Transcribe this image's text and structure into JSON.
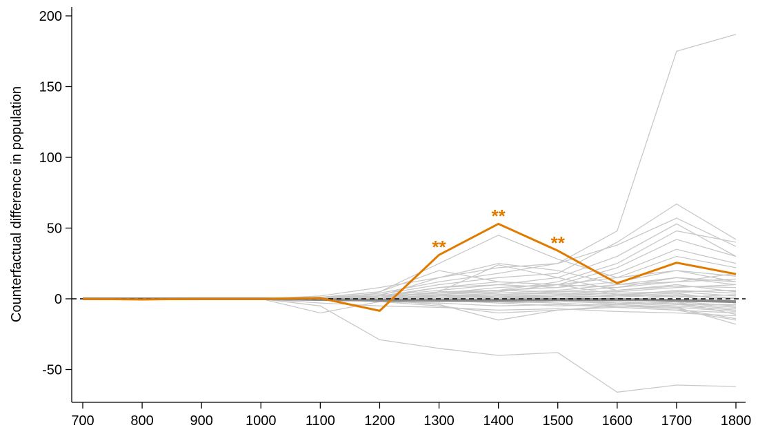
{
  "chart_data": {
    "type": "line",
    "title": "",
    "xlabel": "",
    "ylabel": "Counterfactual difference in population",
    "x": [
      700,
      800,
      900,
      1000,
      1100,
      1200,
      1300,
      1400,
      1500,
      1600,
      1700,
      1800
    ],
    "xlim": [
      690,
      1810
    ],
    "ylim": [
      -73,
      203
    ],
    "xticks": [
      700,
      800,
      900,
      1000,
      1100,
      1200,
      1300,
      1400,
      1500,
      1600,
      1700,
      1800
    ],
    "yticks": [
      -50,
      0,
      50,
      100,
      150,
      200
    ],
    "xtick_labels": [
      "700",
      "800",
      "900",
      "1000",
      "1100",
      "1200",
      "1300",
      "1400",
      "1500",
      "1600",
      "1700",
      "1800"
    ],
    "ytick_labels": [
      "-50",
      "0",
      "50",
      "100",
      "150",
      "200"
    ],
    "grid": false,
    "reference_line": {
      "y": 0,
      "style": "dashed",
      "color": "#000000"
    },
    "main_series": {
      "values": [
        0,
        -0.5,
        0,
        0,
        0.5,
        -8.5,
        31,
        53,
        34,
        11,
        25.5,
        17.5
      ],
      "color": "#E07B00"
    },
    "annotations": [
      {
        "text": "**",
        "x": 1300,
        "y": 39
      },
      {
        "text": "**",
        "x": 1400,
        "y": 61
      },
      {
        "text": "**",
        "x": 1500,
        "y": 42
      }
    ],
    "placebo_color": "#c8c8c8",
    "placebo_series": [
      [
        0,
        0,
        0,
        0,
        1,
        5,
        25,
        45,
        28,
        15,
        20,
        12
      ],
      [
        0,
        0,
        0,
        0,
        2,
        8,
        15,
        22,
        25,
        48,
        175,
        187
      ],
      [
        0,
        0,
        0,
        0,
        -5,
        -29,
        -35,
        -40,
        -38,
        -66,
        -61,
        -62
      ],
      [
        0,
        0,
        0,
        0,
        1,
        3,
        10,
        15,
        18,
        40,
        67,
        42
      ],
      [
        0,
        0,
        0,
        0,
        0,
        4,
        12,
        18,
        25,
        38,
        57,
        37
      ],
      [
        0,
        0,
        0,
        0,
        1,
        2,
        8,
        10,
        15,
        30,
        53,
        30
      ],
      [
        0,
        0,
        0,
        0,
        0,
        1,
        5,
        6,
        12,
        25,
        48,
        40
      ],
      [
        0,
        0,
        0,
        0,
        -1,
        2,
        4,
        8,
        10,
        22,
        42,
        30
      ],
      [
        0,
        0,
        0,
        0,
        0,
        2,
        6,
        10,
        8,
        18,
        35,
        25
      ],
      [
        0,
        0,
        0,
        0,
        1,
        -1,
        3,
        5,
        10,
        15,
        30,
        22
      ],
      [
        0,
        0,
        0,
        0,
        0,
        2,
        15,
        25,
        20,
        10,
        12,
        18
      ],
      [
        0,
        0,
        0,
        0,
        1,
        5,
        20,
        12,
        10,
        8,
        15,
        10
      ],
      [
        0,
        0,
        0,
        0,
        0,
        0,
        5,
        24,
        15,
        6,
        10,
        5
      ],
      [
        0,
        0,
        0,
        0,
        0,
        1,
        2,
        4,
        6,
        10,
        15,
        12
      ],
      [
        0,
        0,
        0,
        0,
        -1,
        0,
        3,
        6,
        5,
        5,
        8,
        10
      ],
      [
        0,
        0,
        0,
        0,
        0,
        1,
        8,
        12,
        10,
        3,
        5,
        2
      ],
      [
        0,
        0,
        0,
        0,
        0,
        -1,
        2,
        3,
        4,
        2,
        6,
        4
      ],
      [
        0,
        0,
        0,
        0,
        1,
        1,
        1,
        2,
        3,
        4,
        5,
        6
      ],
      [
        0,
        0,
        0,
        0,
        0,
        0,
        -2,
        0,
        2,
        1,
        3,
        0
      ],
      [
        0,
        0,
        0,
        0,
        0,
        0,
        1,
        2,
        0,
        -1,
        2,
        -3
      ],
      [
        0,
        0,
        0,
        0,
        0,
        -1,
        -1,
        -1,
        0,
        0,
        -2,
        -5
      ],
      [
        0,
        0,
        0,
        0,
        -1,
        0,
        0,
        -3,
        -2,
        -3,
        -5,
        -8
      ],
      [
        0,
        0,
        0,
        0,
        0,
        -2,
        -3,
        -5,
        -4,
        -6,
        -8,
        -10
      ],
      [
        0,
        0,
        0,
        0,
        -3,
        -5,
        -6,
        -8,
        -7,
        -9,
        -10,
        -12
      ],
      [
        0,
        0,
        0,
        0,
        0,
        -1,
        -4,
        -15,
        -8,
        -5,
        -7,
        -14
      ],
      [
        0,
        0,
        0,
        0,
        -10,
        -2,
        -5,
        -10,
        -8,
        -6,
        -8,
        -15
      ],
      [
        0,
        0,
        0,
        0,
        1,
        0,
        -1,
        -2,
        -3,
        -5,
        -6,
        -18
      ],
      [
        0,
        0,
        0,
        0,
        0,
        1,
        2,
        1,
        -1,
        -2,
        -4,
        -7
      ],
      [
        0,
        0,
        0,
        0,
        0,
        0,
        1,
        0,
        1,
        2,
        4,
        -2
      ],
      [
        0,
        0,
        0,
        0,
        1,
        2,
        3,
        1,
        2,
        3,
        1,
        3
      ],
      [
        0,
        0,
        0,
        0,
        0,
        1,
        0,
        -1,
        -1,
        -3,
        -3,
        -6
      ],
      [
        0,
        0,
        0,
        0,
        0,
        0,
        0,
        1,
        3,
        6,
        9,
        8
      ],
      [
        0,
        0,
        0,
        0,
        0,
        -1,
        -2,
        -2,
        -1,
        -4,
        -6,
        -9
      ],
      [
        0,
        0,
        0,
        0,
        0,
        1,
        1,
        3,
        5,
        8,
        12,
        14
      ],
      [
        0,
        0,
        0,
        0,
        -1,
        -1,
        0,
        1,
        0,
        2,
        2,
        1
      ],
      [
        0,
        0,
        0,
        0,
        0,
        0,
        -1,
        -3,
        -5,
        -4,
        -2,
        -11
      ],
      [
        0,
        0,
        0,
        0,
        0,
        2,
        4,
        6,
        8,
        12,
        20,
        16
      ],
      [
        0,
        0,
        0,
        0,
        0,
        0,
        0,
        -1,
        -2,
        -2,
        -4,
        -4
      ]
    ],
    "mean_series": {
      "values": [
        0,
        0,
        0,
        0,
        -0.5,
        -1,
        -1,
        -1,
        -0.5,
        -0.5,
        -1,
        -2
      ],
      "color": "#8a8a8a"
    }
  }
}
